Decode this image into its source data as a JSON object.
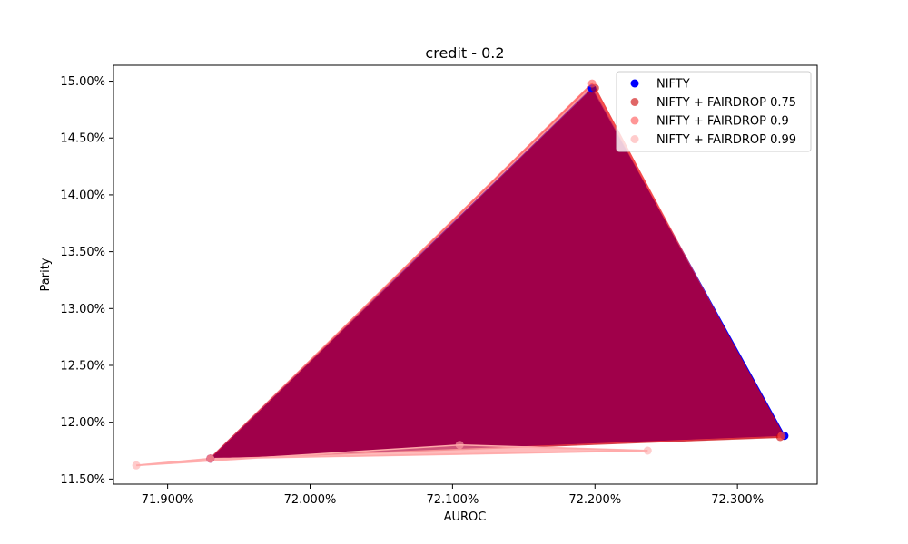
{
  "chart_data": {
    "type": "scatter",
    "title": "credit - 0.2",
    "xlabel": "AUROC",
    "ylabel": "Parity",
    "xlim": [
      71.862,
      72.356
    ],
    "ylim": [
      11.455,
      15.14
    ],
    "xticks": [
      71.9,
      72.0,
      72.1,
      72.2,
      72.3
    ],
    "yticks": [
      11.5,
      12.0,
      12.5,
      13.0,
      13.5,
      14.0,
      14.5,
      15.0
    ],
    "tick_format": "%.3f%% / %.2f%%",
    "grid": false,
    "legend_position": "upper right",
    "series": [
      {
        "name": "NIFTY",
        "color": "#0000ff",
        "alpha": 1.0,
        "points": [
          [
            71.93,
            11.68
          ],
          [
            72.198,
            14.935
          ],
          [
            72.333,
            11.88
          ]
        ]
      },
      {
        "name": "NIFTY + FAIRDROP 0.75",
        "color": "#cc0000",
        "alpha": 0.6,
        "points": [
          [
            71.93,
            11.68
          ],
          [
            72.2,
            14.94
          ],
          [
            72.33,
            11.87
          ]
        ]
      },
      {
        "name": "NIFTY + FAIRDROP 0.9",
        "color": "#ff5050",
        "alpha": 0.6,
        "points": [
          [
            71.93,
            11.68
          ],
          [
            72.198,
            14.98
          ],
          [
            72.331,
            11.88
          ]
        ]
      },
      {
        "name": "NIFTY + FAIRDROP 0.99",
        "color": "#ffaaaa",
        "alpha": 0.6,
        "points": [
          [
            71.878,
            11.62
          ],
          [
            72.105,
            11.8
          ],
          [
            72.237,
            11.75
          ],
          [
            71.93,
            11.68
          ]
        ]
      }
    ]
  }
}
